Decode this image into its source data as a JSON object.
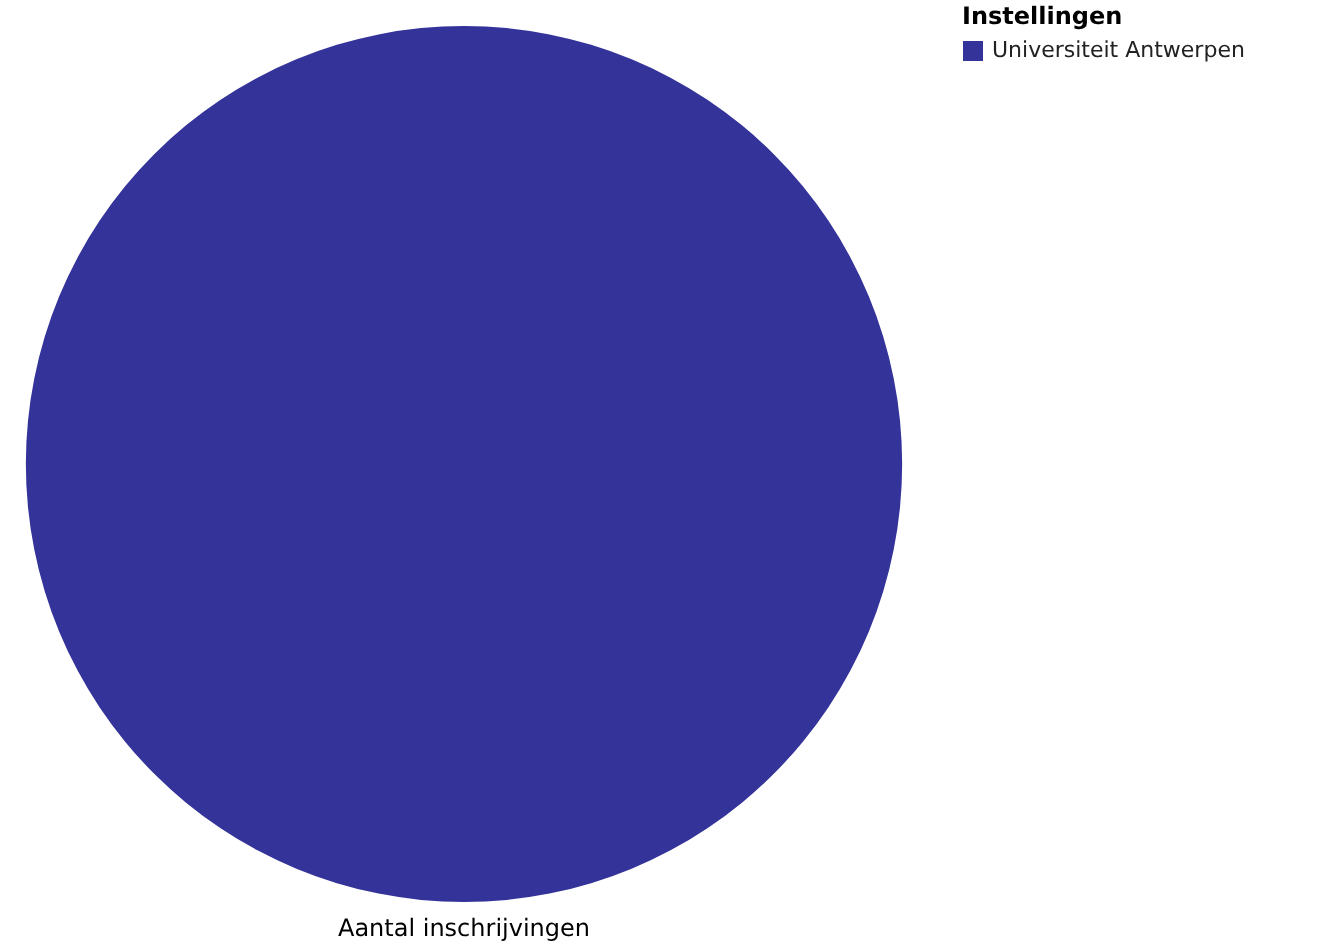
{
  "chart_data": {
    "type": "pie",
    "categories": [
      "Universiteit Antwerpen"
    ],
    "values": [
      100
    ],
    "colors": [
      "#333399"
    ],
    "legend_title": "Instellingen",
    "legend": "top right",
    "xlabel": "Aantal inschrijvingen"
  }
}
